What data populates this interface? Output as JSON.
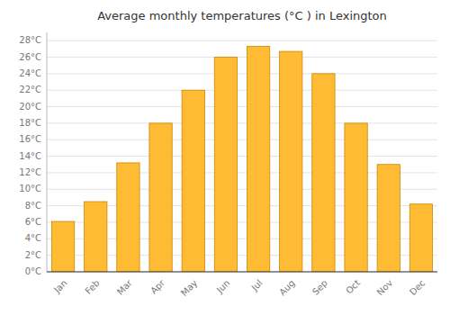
{
  "chart_data": {
    "type": "bar",
    "title": "Average monthly temperatures (°C ) in Lexington",
    "categories": [
      "Jan",
      "Feb",
      "Mar",
      "Apr",
      "May",
      "Jun",
      "Jul",
      "Aug",
      "Sep",
      "Oct",
      "Nov",
      "Dec"
    ],
    "values": [
      6.1,
      8.5,
      13.2,
      18.0,
      22.0,
      26.0,
      27.3,
      26.7,
      24.0,
      18.0,
      13.0,
      8.2
    ],
    "color": "#FFBB33",
    "ylim": [
      0,
      29
    ],
    "yticks": [
      {
        "value": 0,
        "label": "0°C"
      },
      {
        "value": 2,
        "label": "2°C"
      },
      {
        "value": 4,
        "label": "4°C"
      },
      {
        "value": 6,
        "label": "6°C"
      },
      {
        "value": 8,
        "label": "8°C"
      },
      {
        "value": 10,
        "label": "10°C"
      },
      {
        "value": 12,
        "label": "12°C"
      },
      {
        "value": 14,
        "label": "14°C"
      },
      {
        "value": 16,
        "label": "16°C"
      },
      {
        "value": 18,
        "label": "18°C"
      },
      {
        "value": 20,
        "label": "20°C"
      },
      {
        "value": 22,
        "label": "22°C"
      },
      {
        "value": 24,
        "label": "24°C"
      },
      {
        "value": 26,
        "label": "26°C"
      },
      {
        "value": 28,
        "label": "28°C"
      }
    ],
    "grid": true
  }
}
